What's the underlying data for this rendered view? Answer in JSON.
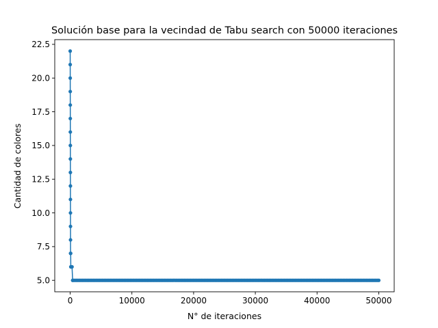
{
  "chart_data": {
    "type": "line",
    "title": "Solución base para la vecindad de Tabu search con 50000 iteraciones",
    "xlabel": "N° de iteraciones",
    "ylabel": "Cantidad de colores",
    "xlim": [
      -2500,
      52500
    ],
    "ylim": [
      4.15,
      22.85
    ],
    "x_ticks": [
      0,
      10000,
      20000,
      30000,
      40000,
      50000
    ],
    "x_tick_labels": [
      "0",
      "10000",
      "20000",
      "30000",
      "40000",
      "50000"
    ],
    "y_ticks": [
      5.0,
      7.5,
      10.0,
      12.5,
      15.0,
      17.5,
      20.0,
      22.5
    ],
    "y_tick_labels": [
      "5.0",
      "7.5",
      "10.0",
      "12.5",
      "15.0",
      "17.5",
      "20.0",
      "22.5"
    ],
    "grid": false,
    "legend": "none",
    "color": "#1f77b4",
    "series": [
      {
        "marker": "circle",
        "initial_points": {
          "x": [
            0,
            4,
            8,
            12,
            16,
            20,
            24,
            28,
            32,
            36,
            40,
            44,
            48,
            52,
            56,
            60,
            80,
            100,
            150,
            200,
            300,
            400,
            500
          ],
          "y": [
            22,
            21,
            20,
            19,
            18,
            17,
            16,
            15,
            14,
            13,
            12,
            11,
            10,
            9,
            8,
            7,
            7,
            6,
            6,
            6,
            6,
            5,
            5
          ]
        },
        "plateau": {
          "y": 5,
          "x_start": 500,
          "x_end": 50000,
          "step": 250
        }
      }
    ]
  }
}
